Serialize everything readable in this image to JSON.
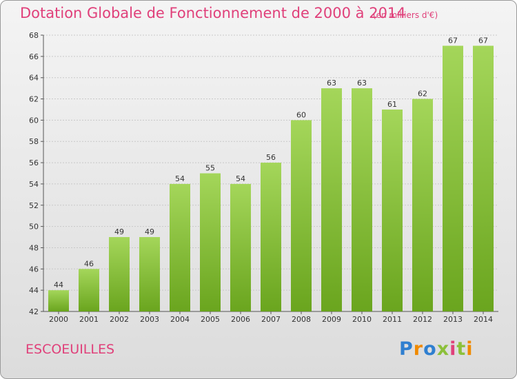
{
  "header": {
    "title": "Dotation Globale de Fonctionnement de 2000 à 2014",
    "subtitle": "(en milliers d'€)"
  },
  "footer": {
    "commune": "ESCOEUILLES",
    "logo_letters": [
      "P",
      "r",
      "o",
      "x",
      "i",
      "t",
      "i"
    ]
  },
  "colors": {
    "bar_light": "#a4d65a",
    "bar_dark": "#6aa51e",
    "title": "#e0407a",
    "grid": "#c8c8c8"
  },
  "chart_data": {
    "type": "bar",
    "title": "Dotation Globale de Fonctionnement de 2000 à 2014",
    "subtitle": "(en milliers d'€)",
    "xlabel": "",
    "ylabel": "",
    "categories": [
      "2000",
      "2001",
      "2002",
      "2003",
      "2004",
      "2005",
      "2006",
      "2007",
      "2008",
      "2009",
      "2010",
      "2011",
      "2012",
      "2013",
      "2014"
    ],
    "values": [
      44,
      46,
      49,
      49,
      54,
      55,
      54,
      56,
      60,
      63,
      63,
      61,
      62,
      67,
      67
    ],
    "ylim": [
      42,
      68
    ],
    "yticks": [
      42,
      44,
      46,
      48,
      50,
      52,
      54,
      56,
      58,
      60,
      62,
      64,
      66,
      68
    ],
    "grid": true,
    "data_labels": true
  }
}
